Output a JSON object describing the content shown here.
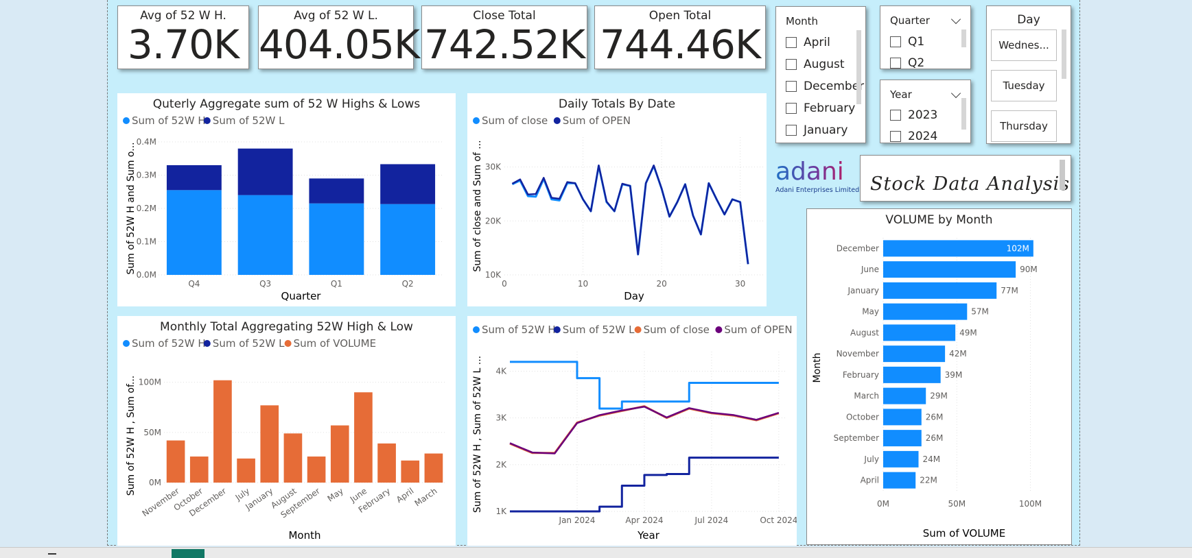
{
  "kpis": [
    {
      "label": "Avg of 52 W H.",
      "value": "3.70K"
    },
    {
      "label": "Avg of 52 W L.",
      "value": "404.05K"
    },
    {
      "label": "Close Total",
      "value": "742.52K"
    },
    {
      "label": "Open Total",
      "value": "744.46K"
    }
  ],
  "slicers": {
    "month": {
      "title": "Month",
      "items": [
        "April",
        "August",
        "December",
        "February",
        "January"
      ]
    },
    "quarter": {
      "title": "Quarter",
      "items": [
        "Q1",
        "Q2"
      ]
    },
    "year": {
      "title": "Year",
      "items": [
        "2023",
        "2024"
      ]
    },
    "day": {
      "title": "Day",
      "items": [
        "Wednes...",
        "Tuesday",
        "Thursday"
      ]
    }
  },
  "logo": {
    "word": "adani",
    "sub": "Adani Enterprises Limited"
  },
  "banner": {
    "text": "Stock Data Analysis"
  },
  "colors": {
    "light_blue": "#118dff",
    "dark_blue": "#12239e",
    "orange": "#e66c37",
    "purple": "#6b007b",
    "canvas": "#c6eefb"
  },
  "chart_data": [
    {
      "id": "quarterly",
      "type": "bar",
      "stacked": true,
      "title": "Quterly Aggregate sum of 52 W Highs & Lows",
      "xlabel": "Quarter",
      "ylabel": "Sum of 52W H and Sum o...",
      "categories": [
        "Q4",
        "Q3",
        "Q1",
        "Q2"
      ],
      "series": [
        {
          "name": "Sum of 52W H",
          "values": [
            0.255,
            0.24,
            0.215,
            0.213
          ]
        },
        {
          "name": "Sum of 52W L",
          "values": [
            0.075,
            0.14,
            0.075,
            0.12
          ]
        }
      ],
      "ylim": [
        0,
        0.4
      ],
      "yticks": [
        "0.0M",
        "0.1M",
        "0.2M",
        "0.3M",
        "0.4M"
      ],
      "legend": "top-left"
    },
    {
      "id": "daily",
      "type": "line",
      "title": "Daily Totals By Date",
      "xlabel": "Day",
      "ylabel": "Sum of close and Sum of ...",
      "x": [
        1,
        2,
        3,
        4,
        5,
        6,
        7,
        8,
        9,
        10,
        11,
        12,
        13,
        14,
        15,
        16,
        17,
        18,
        19,
        20,
        21,
        22,
        23,
        24,
        25,
        26,
        27,
        28,
        29,
        30,
        31
      ],
      "series": [
        {
          "name": "Sum of close",
          "values": [
            26800,
            27500,
            24600,
            24500,
            27800,
            24000,
            23800,
            27000,
            27000,
            24000,
            21800,
            30200,
            23500,
            21800,
            26800,
            26500,
            13800,
            27000,
            30200,
            26000,
            20800,
            23500,
            26800,
            21000,
            17500,
            27000,
            24000,
            21200,
            24000,
            23500,
            12000
          ]
        },
        {
          "name": "Sum of OPEN",
          "values": [
            26900,
            27700,
            24900,
            25000,
            28000,
            24300,
            24100,
            27200,
            27000,
            24000,
            21800,
            30300,
            23600,
            21800,
            26900,
            26500,
            13800,
            27000,
            30300,
            26000,
            20800,
            23500,
            26800,
            21000,
            17500,
            27000,
            24000,
            21200,
            24000,
            23500,
            12000
          ]
        }
      ],
      "xlim": [
        0,
        33
      ],
      "xticks": [
        "0",
        "10",
        "20",
        "30"
      ],
      "ylim": [
        10000,
        33000
      ],
      "yticks": [
        "10K",
        "20K",
        "30K"
      ],
      "legend": "top-left"
    },
    {
      "id": "monthly",
      "type": "bar",
      "title": "Monthly Total Aggregating 52W High & Low",
      "xlabel": "Month",
      "ylabel": "Sum of 52W H , Sum of...",
      "categories": [
        "November",
        "October",
        "December",
        "July",
        "January",
        "August",
        "September",
        "May",
        "June",
        "February",
        "April",
        "March"
      ],
      "legend_entries": [
        "Sum of 52W H",
        "Sum of 52W L",
        "Sum of VOLUME"
      ],
      "series": [
        {
          "name": "Sum of VOLUME",
          "values": [
            42,
            26,
            102,
            24,
            77,
            49,
            26,
            57,
            90,
            39,
            22,
            29
          ]
        }
      ],
      "ylim": [
        0,
        110
      ],
      "yticks": [
        "0M",
        "50M",
        "100M"
      ],
      "legend": "top-left"
    },
    {
      "id": "yearly",
      "type": "line",
      "xlabel": "Year",
      "ylabel": "Sum of 52W H , Sum of 52W L ...",
      "x": [
        "2023-10",
        "2023-11",
        "2023-12",
        "2024-01",
        "2024-02",
        "2024-03",
        "2024-04",
        "2024-05",
        "2024-06",
        "2024-07",
        "2024-08",
        "2024-09",
        "2024-10"
      ],
      "series": [
        {
          "name": "Sum of 52W H",
          "values": [
            4200,
            4200,
            4200,
            3850,
            3200,
            3350,
            3350,
            3350,
            3750,
            3750,
            3750,
            3750,
            3750
          ]
        },
        {
          "name": "Sum of 52W L",
          "values": [
            1000,
            1000,
            1000,
            1000,
            1100,
            1550,
            1780,
            1800,
            2150,
            2150,
            2150,
            2150,
            2150
          ]
        },
        {
          "name": "Sum of close",
          "values": [
            2450,
            2250,
            2250,
            2900,
            3050,
            3150,
            3250,
            3000,
            3200,
            3100,
            3050,
            2950,
            3100
          ]
        },
        {
          "name": "Sum of OPEN",
          "values": [
            2460,
            2260,
            2240,
            2890,
            3060,
            3160,
            3240,
            3010,
            3210,
            3110,
            3060,
            2960,
            3110
          ]
        }
      ],
      "xticks": [
        "Jan 2024",
        "Apr 2024",
        "Jul 2024",
        "Oct 2024"
      ],
      "ylim": [
        1000,
        4300
      ],
      "yticks": [
        "1K",
        "2K",
        "3K",
        "4K"
      ],
      "legend": "top-left"
    },
    {
      "id": "volume",
      "type": "bar",
      "orientation": "horizontal",
      "title": "VOLUME by Month",
      "xlabel": "Sum of VOLUME",
      "ylabel": "Month",
      "categories": [
        "December",
        "June",
        "January",
        "May",
        "August",
        "November",
        "February",
        "March",
        "October",
        "September",
        "July",
        "April"
      ],
      "series": [
        {
          "name": "Sum of VOLUME",
          "values": [
            102,
            90,
            77,
            57,
            49,
            42,
            39,
            29,
            26,
            26,
            24,
            22
          ]
        }
      ],
      "labels": [
        "102M",
        "90M",
        "77M",
        "57M",
        "49M",
        "42M",
        "39M",
        "29M",
        "26M",
        "26M",
        "24M",
        "22M"
      ],
      "xlim": [
        0,
        110
      ],
      "xticks": [
        "0M",
        "50M",
        "100M"
      ]
    }
  ]
}
